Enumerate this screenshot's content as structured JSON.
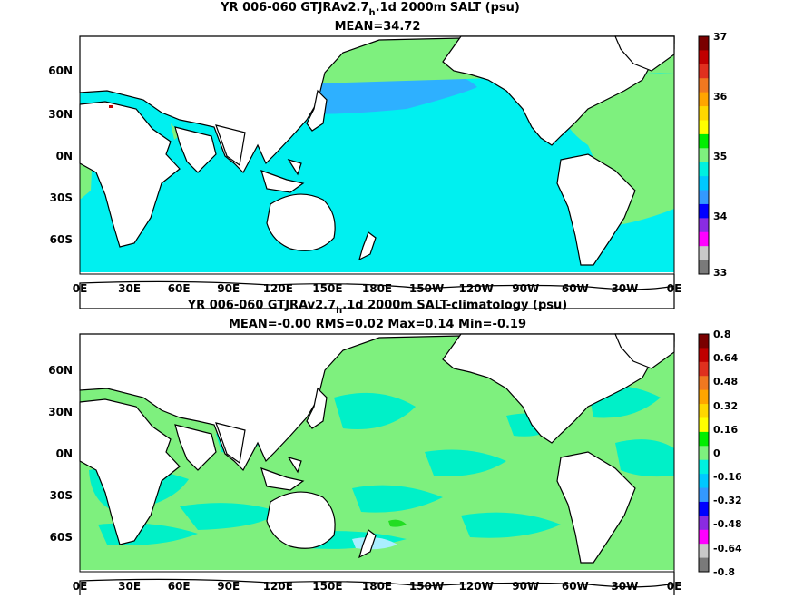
{
  "chart_data": [
    {
      "type": "heatmap",
      "title": {
        "prefix": "YR 006-060 GTJRAv2.7",
        "subscript": "h",
        "suffix": ".1d 2000m SALT (psu)"
      },
      "subtitle": "MEAN=34.72",
      "xticks": [
        "0E",
        "30E",
        "60E",
        "90E",
        "120E",
        "150E",
        "180E",
        "150W",
        "120W",
        "90W",
        "60W",
        "30W",
        "0E"
      ],
      "yticks": [
        "60N",
        "30N",
        "0N",
        "30S",
        "60S"
      ],
      "colorbar": {
        "labels": [
          "37",
          "36",
          "35",
          "34",
          "33"
        ],
        "colors": [
          "#7a0000",
          "#c00000",
          "#e0301e",
          "#f07820",
          "#ffa500",
          "#ffd700",
          "#ffff00",
          "#00ee00",
          "#7ef07e",
          "#00f0e0",
          "#00c8ff",
          "#3399ff",
          "#0000ff",
          "#8a2be2",
          "#ff00ff",
          "#c8c8c8",
          "#7a7a7a"
        ]
      },
      "field": {
        "ocean": "#00f0f0",
        "north_pacific": "#2eb0ff",
        "atlantic": "#7ef07e",
        "mediterranean": "#c00000"
      }
    },
    {
      "type": "heatmap",
      "title": {
        "prefix": "YR 006-060 GTJRAv2.7",
        "subscript": "h",
        "suffix": ".1d 2000m SALT-climatology (psu)"
      },
      "subtitle": "MEAN=-0.00   RMS=0.02   Max=0.14   Min=-0.19",
      "xticks": [
        "0E",
        "30E",
        "60E",
        "90E",
        "120E",
        "150E",
        "180E",
        "150W",
        "120W",
        "90W",
        "60W",
        "30W",
        "0E"
      ],
      "yticks": [
        "60N",
        "30N",
        "0N",
        "30S",
        "60S"
      ],
      "colorbar": {
        "labels": [
          "0.8",
          "0.64",
          "0.48",
          "0.32",
          "0.16",
          "0",
          "-0.16",
          "-0.32",
          "-0.48",
          "-0.64",
          "-0.8"
        ],
        "colors": [
          "#7a0000",
          "#c00000",
          "#e0301e",
          "#f07820",
          "#ffa500",
          "#ffd700",
          "#ffff00",
          "#00ee00",
          "#7ef07e",
          "#00f0e0",
          "#00c8ff",
          "#3399ff",
          "#0000ff",
          "#8a2be2",
          "#ff00ff",
          "#c8c8c8",
          "#7a7a7a"
        ]
      },
      "field": {
        "ocean": "#7ef07e",
        "patch": "#00f0c8",
        "high": "#22dd22",
        "low": "#aaeeff"
      }
    }
  ]
}
